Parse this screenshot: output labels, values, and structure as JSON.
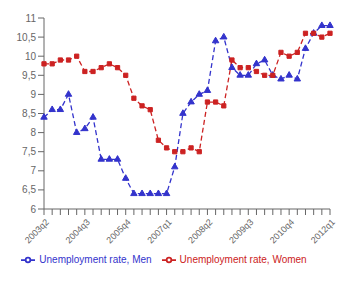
{
  "chart_data": {
    "type": "line",
    "categories": [
      "2003q2",
      null,
      null,
      null,
      null,
      "2004q3",
      null,
      null,
      null,
      null,
      "2005q4",
      null,
      null,
      null,
      null,
      "2007q1",
      null,
      null,
      null,
      null,
      "2008q2",
      null,
      null,
      null,
      null,
      "2009q3",
      null,
      null,
      null,
      null,
      "2010q4",
      null,
      null,
      null,
      null,
      "2012q1"
    ],
    "series": [
      {
        "name": "Unemployment rate, Men",
        "color": "#3333cc",
        "marker": "triangle",
        "line_style": "dashed",
        "values": [
          8.4,
          8.6,
          8.6,
          9.0,
          8.0,
          8.1,
          8.4,
          7.3,
          7.3,
          7.3,
          6.8,
          6.4,
          6.4,
          6.4,
          6.4,
          6.4,
          7.1,
          8.5,
          8.8,
          9.0,
          9.1,
          10.4,
          10.5,
          9.7,
          9.5,
          9.5,
          9.8,
          9.9,
          9.5,
          9.4,
          9.5,
          9.4,
          10.2,
          10.6,
          10.8,
          10.8
        ]
      },
      {
        "name": "Unemployment rate, Women",
        "color": "#cc2222",
        "marker": "square",
        "line_style": "dashed",
        "values": [
          9.8,
          9.8,
          9.9,
          9.9,
          10.0,
          9.6,
          9.6,
          9.7,
          9.8,
          9.7,
          9.5,
          8.9,
          8.7,
          8.6,
          7.8,
          7.6,
          7.5,
          7.5,
          7.6,
          7.5,
          8.8,
          8.8,
          8.7,
          9.9,
          9.7,
          9.7,
          9.6,
          9.5,
          9.5,
          10.1,
          10.0,
          10.1,
          10.6,
          10.6,
          10.5,
          10.6
        ]
      }
    ],
    "ylim": [
      6,
      11
    ],
    "yticks": [
      6,
      {
        "value": 6.5,
        "label": "6,5"
      },
      7,
      {
        "value": 7.5,
        "label": "7,5"
      },
      8,
      {
        "value": 8.5,
        "label": "8,5"
      },
      9,
      {
        "value": 9.5,
        "label": "9,5"
      },
      10,
      {
        "value": 10.5,
        "label": "10,5"
      },
      11
    ],
    "grid": false,
    "legend": "bottom"
  }
}
